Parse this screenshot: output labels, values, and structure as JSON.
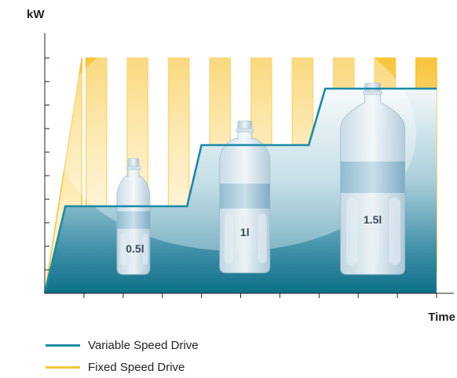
{
  "chart_data": {
    "type": "line",
    "ylabel": "kW",
    "xlabel": "Time",
    "ylim": [
      0,
      10
    ],
    "xlim": [
      0,
      19
    ],
    "x_ticks": 10,
    "y_ticks": 11,
    "legend": "bottom-left",
    "series": [
      {
        "name": "Variable Speed Drive",
        "color": "#1a8aa8",
        "points": [
          [
            0,
            0
          ],
          [
            1,
            3.7
          ],
          [
            6.9,
            3.7
          ],
          [
            7.6,
            6.3
          ],
          [
            12.8,
            6.3
          ],
          [
            13.6,
            8.7
          ],
          [
            19,
            8.7
          ]
        ]
      },
      {
        "name": "Fixed Speed Drive",
        "color": "#f6c53a",
        "pulses": [
          [
            0,
            1.8
          ],
          [
            2,
            3
          ],
          [
            4,
            5
          ],
          [
            6,
            7
          ],
          [
            8,
            9
          ],
          [
            10,
            11
          ],
          [
            12,
            13
          ],
          [
            14,
            15
          ],
          [
            16,
            17
          ],
          [
            18,
            19
          ]
        ],
        "high": 10,
        "low": 0.9
      }
    ],
    "annotations": [
      {
        "text": "0.5l",
        "x": 4.3
      },
      {
        "text": "1l",
        "x": 9.7
      },
      {
        "text": "1.5l",
        "x": 15.9
      }
    ]
  },
  "colors": {
    "vsd_line": "#1a8aa8",
    "fsd_fill": "#f6c53a",
    "area_dark": "#0e6f88",
    "area_light": "#e8f3f6"
  }
}
